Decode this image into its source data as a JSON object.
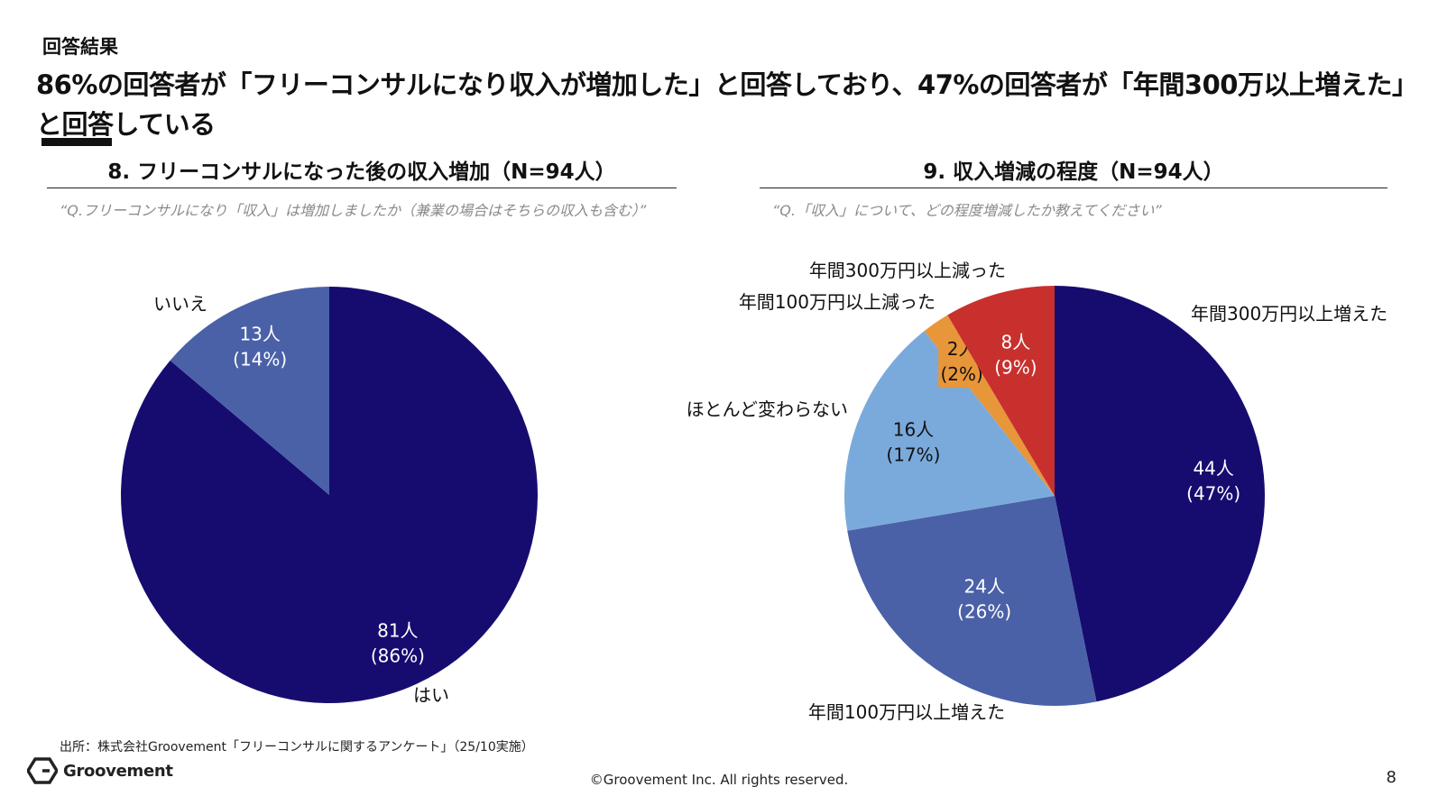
{
  "section_label": "回答結果",
  "headline": "86%の回答者が「フリーコンサルになり収入が増加した」と回答しており、47%の回答者が「年間300万以上増えた」と回答している",
  "chart_data": [
    {
      "type": "pie",
      "title": "8. フリーコンサルになった後の収入増加（N=94人）",
      "question": "“Q.フリーコンサルになり「収入」は増加しましたか（兼業の場合はそちらの収入も含む）”",
      "categories": [
        "はい",
        "いいえ"
      ],
      "values": [
        81,
        13
      ],
      "value_labels": [
        "81人",
        "13人"
      ],
      "percent_labels": [
        "(86%)",
        "(14%)"
      ],
      "colors": [
        "#160c70",
        "#4a61a8"
      ]
    },
    {
      "type": "pie",
      "title": "9. 収入増減の程度（N=94人）",
      "question": "“Q.「収入」について、どの程度増減したか教えてください”",
      "categories": [
        "年間300万円以上増えた",
        "年間100万円以上増えた",
        "ほとんど変わらない",
        "年間100万円以上減った",
        "年間300万円以上減った"
      ],
      "values": [
        44,
        24,
        16,
        2,
        8
      ],
      "value_labels": [
        "44人",
        "24人",
        "16人",
        "2人",
        "8人"
      ],
      "percent_labels": [
        "(47%)",
        "(26%)",
        "(17%)",
        "(2%)",
        "(9%)"
      ],
      "colors": [
        "#160c70",
        "#4a61a8",
        "#7aaadc",
        "#e8963a",
        "#c8302e"
      ]
    }
  ],
  "footer": {
    "source": "出所：株式会社Groovement「フリーコンサルに関するアンケート」（25/10実施）",
    "logo_text": "Groovement",
    "copyright": "©Groovement Inc. All rights reserved.",
    "page_number": "8"
  }
}
